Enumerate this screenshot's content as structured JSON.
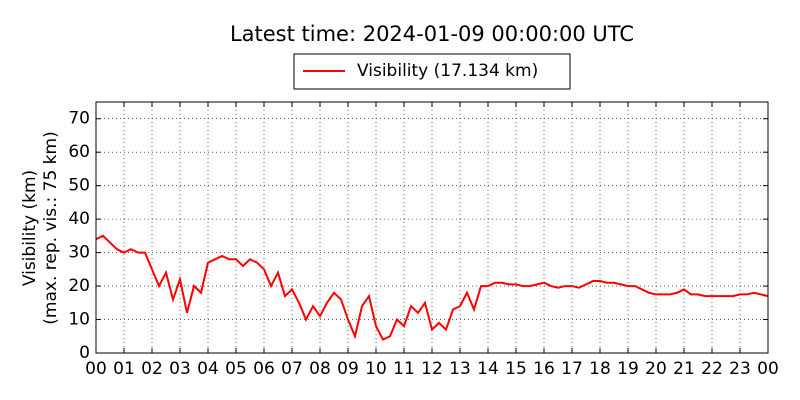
{
  "chart_data": {
    "type": "line",
    "title": "Latest time: 2024-01-09 00:00:00 UTC",
    "ylabel": [
      "Visibility (km)",
      "(max. rep. vis.: 75 km)"
    ],
    "x": [
      0,
      0.25,
      0.5,
      0.75,
      1,
      1.25,
      1.5,
      1.75,
      2,
      2.25,
      2.5,
      2.75,
      3,
      3.25,
      3.5,
      3.75,
      4,
      4.25,
      4.5,
      4.75,
      5,
      5.25,
      5.5,
      5.75,
      6,
      6.25,
      6.5,
      6.75,
      7,
      7.25,
      7.5,
      7.75,
      8,
      8.25,
      8.5,
      8.75,
      9,
      9.25,
      9.5,
      9.75,
      10,
      10.25,
      10.5,
      10.75,
      11,
      11.25,
      11.5,
      11.75,
      12,
      12.25,
      12.5,
      12.75,
      13,
      13.25,
      13.5,
      13.75,
      14,
      14.25,
      14.5,
      14.75,
      15,
      15.25,
      15.5,
      15.75,
      16,
      16.25,
      16.5,
      16.75,
      17,
      17.25,
      17.5,
      17.75,
      18,
      18.25,
      18.5,
      18.75,
      19,
      19.25,
      19.5,
      19.75,
      20,
      20.25,
      20.5,
      20.75,
      21,
      21.25,
      21.5,
      21.75,
      22,
      22.25,
      22.5,
      22.75,
      23,
      23.25,
      23.5,
      23.75,
      24
    ],
    "series": [
      {
        "name": "Visibility (17.134 km)",
        "color": "#ff0000",
        "values": [
          34,
          35,
          33,
          31,
          30,
          31,
          30,
          30,
          25,
          20,
          24,
          16,
          22,
          12,
          20,
          18,
          27,
          28,
          29,
          28,
          28,
          26,
          28,
          27,
          25,
          20,
          24,
          17,
          19,
          15,
          10,
          14,
          11,
          15,
          18,
          16,
          10,
          5,
          14,
          17,
          8,
          4,
          5,
          10,
          8,
          14,
          12,
          15,
          7,
          9,
          7,
          13,
          14,
          18,
          13,
          20,
          20,
          21,
          21,
          20.5,
          20.5,
          20,
          20,
          20.5,
          21,
          20,
          19.5,
          20,
          20,
          19.5,
          20.5,
          21.5,
          21.5,
          21,
          21,
          20.5,
          20,
          20,
          19,
          18,
          17.5,
          17.5,
          17.5,
          18,
          19,
          17.5,
          17.5,
          17,
          17,
          17,
          17,
          17,
          17.5,
          17.5,
          18,
          17.5,
          17
        ]
      }
    ],
    "xlim": [
      0,
      24
    ],
    "xticks": [
      {
        "value": 0,
        "label": "00"
      },
      {
        "value": 1,
        "label": "01"
      },
      {
        "value": 2,
        "label": "02"
      },
      {
        "value": 3,
        "label": "03"
      },
      {
        "value": 4,
        "label": "04"
      },
      {
        "value": 5,
        "label": "05"
      },
      {
        "value": 6,
        "label": "06"
      },
      {
        "value": 7,
        "label": "07"
      },
      {
        "value": 8,
        "label": "08"
      },
      {
        "value": 9,
        "label": "09"
      },
      {
        "value": 10,
        "label": "10"
      },
      {
        "value": 11,
        "label": "11"
      },
      {
        "value": 12,
        "label": "12"
      },
      {
        "value": 13,
        "label": "13"
      },
      {
        "value": 14,
        "label": "14"
      },
      {
        "value": 15,
        "label": "15"
      },
      {
        "value": 16,
        "label": "16"
      },
      {
        "value": 17,
        "label": "17"
      },
      {
        "value": 18,
        "label": "18"
      },
      {
        "value": 19,
        "label": "19"
      },
      {
        "value": 20,
        "label": "20"
      },
      {
        "value": 21,
        "label": "21"
      },
      {
        "value": 22,
        "label": "22"
      },
      {
        "value": 23,
        "label": "23"
      },
      {
        "value": 24,
        "label": "00"
      }
    ],
    "ylim": [
      0,
      75
    ],
    "yticks": [
      0,
      10,
      20,
      30,
      40,
      50,
      60,
      70
    ],
    "grid": true
  }
}
